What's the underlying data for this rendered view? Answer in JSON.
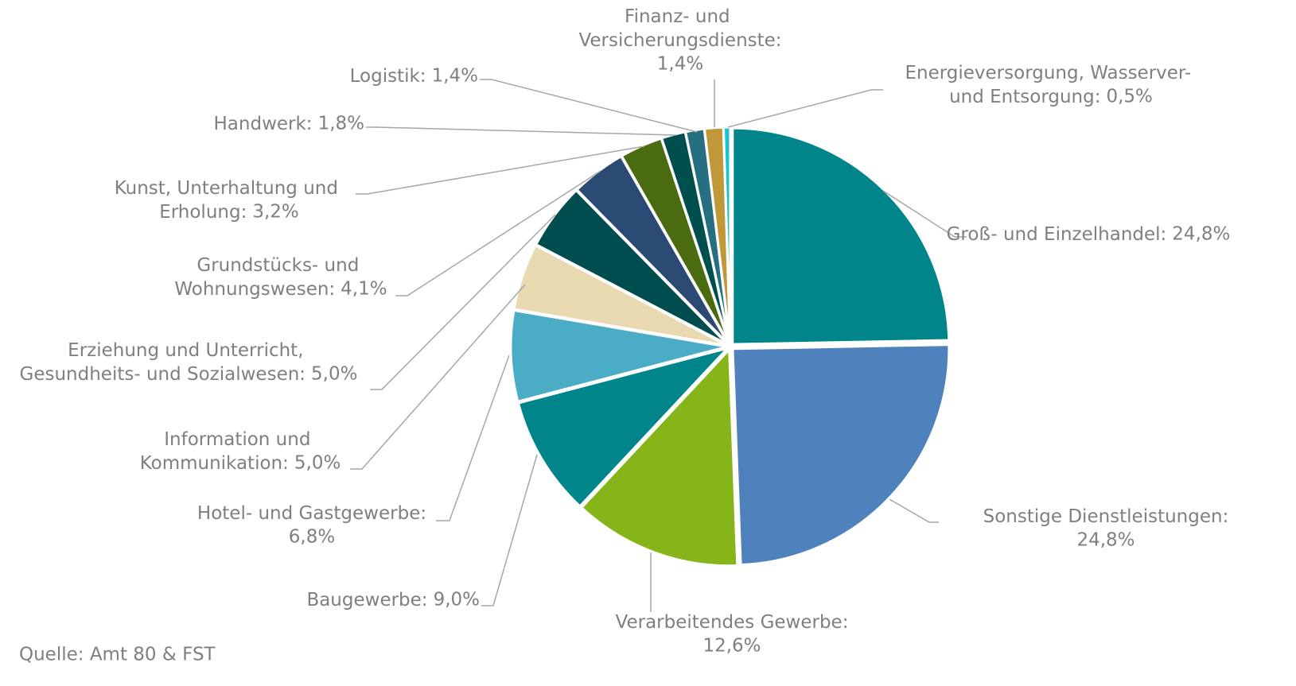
{
  "chart_data": {
    "type": "pie",
    "categories": [
      "Groß- und Einzelhandel:",
      "Sonstige Dienstleistungen:",
      "Verarbeitendes Gewerbe:",
      "Baugewerbe:",
      "Hotel- und Gastgewerbe:",
      "Information und Kommunikation:",
      "Erziehung und Unterricht, Gesundheits- und Sozialwesen:",
      "Grundstücks- und Wohnungswesen:",
      "Kunst, Unterhaltung und Erholung:",
      "Handwerk:",
      "Logistik:",
      "Finanz- und Versicherungsdienste:",
      "Energieversorgung, Wasserver- und Entsorgung:"
    ],
    "values": [
      24.8,
      24.8,
      12.6,
      9.0,
      6.8,
      5.0,
      5.0,
      4.1,
      3.2,
      1.8,
      1.4,
      1.4,
      0.5
    ],
    "value_labels": [
      "24,8%",
      "24,8%",
      "12,6%",
      "9,0%",
      "6,8%",
      "5,0%",
      "5,0%",
      "4,1%",
      "3,2%",
      "1,8%",
      "1,4%",
      "1,4%",
      "0,5%"
    ],
    "colors": [
      "#00868a",
      "#4f81bd",
      "#86b51a",
      "#00868a",
      "#4bacc6",
      "#e8d9b0",
      "#004d4f",
      "#2b4a73",
      "#4b6b10",
      "#004f4f",
      "#266f80",
      "#c0983a",
      "#17c4d0"
    ],
    "source": "Quelle: Amt 80 & FST"
  }
}
